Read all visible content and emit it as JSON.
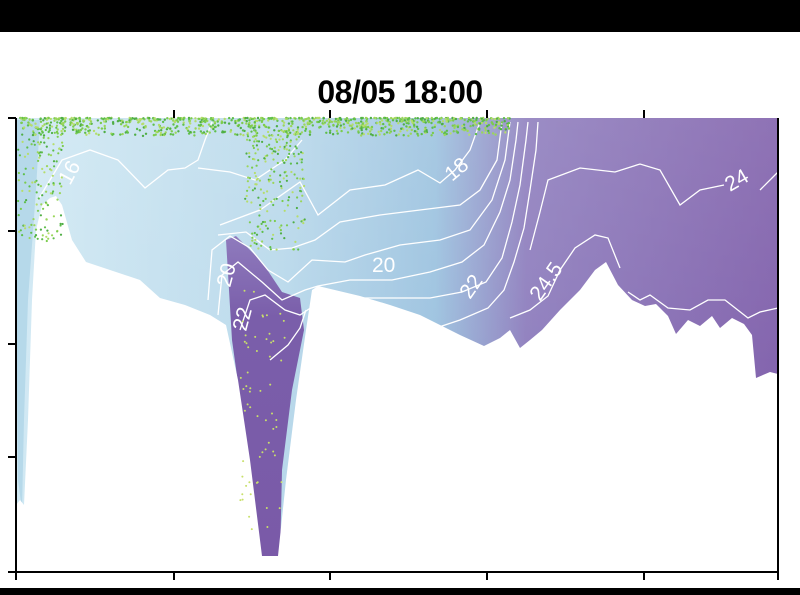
{
  "title": "08/05 18:00",
  "chart_data": {
    "type": "heatmap",
    "title": "08/05 18:00",
    "xlabel": "",
    "ylabel": "",
    "colors": {
      "low": "#c9e4f0",
      "mid": "#a9cde3",
      "high": "#7a5aa8",
      "contour": "#ffffff",
      "points": "#7ccc4e"
    },
    "contour_labels": [
      "16",
      "18",
      "20",
      "20",
      "22",
      "22",
      "24.5",
      "24"
    ],
    "x_ticks": 5,
    "y_ticks": 4,
    "grid": false,
    "legend": "none"
  }
}
